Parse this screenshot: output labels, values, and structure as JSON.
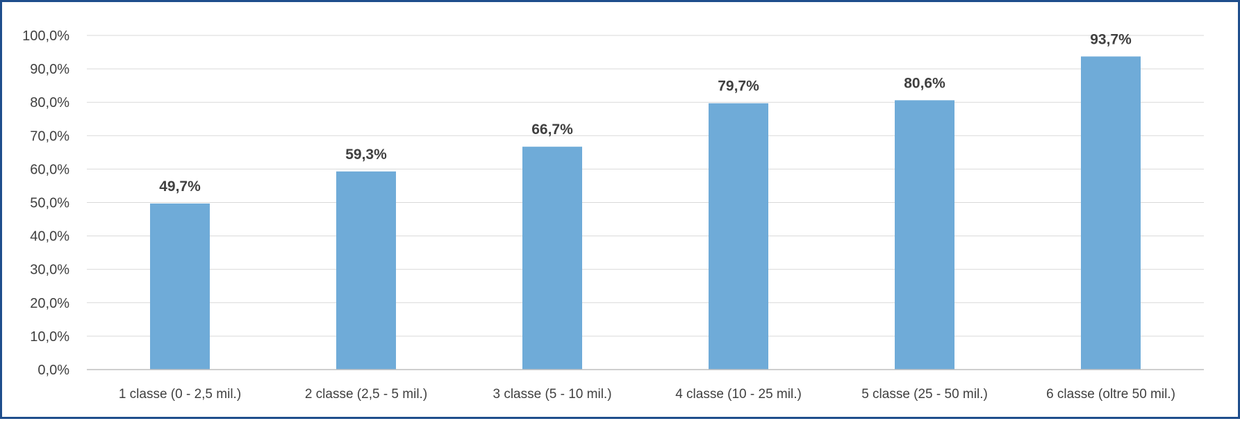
{
  "chart_data": {
    "type": "bar",
    "title": "",
    "xlabel": "",
    "ylabel": "",
    "categories": [
      "1 classe (0 - 2,5 mil.)",
      "2 classe (2,5 - 5 mil.)",
      "3 classe (5 - 10 mil.)",
      "4 classe (10 - 25 mil.)",
      "5 classe (25 - 50 mil.)",
      "6 classe (oltre 50 mil.)"
    ],
    "values": [
      49.7,
      59.3,
      66.7,
      79.7,
      80.6,
      93.7
    ],
    "value_labels": [
      "49,7%",
      "59,3%",
      "66,7%",
      "79,7%",
      "80,6%",
      "93,7%"
    ],
    "ylim": [
      0,
      100
    ],
    "yticks": [
      0,
      10,
      20,
      30,
      40,
      50,
      60,
      70,
      80,
      90,
      100
    ],
    "ytick_labels": [
      "0,0%",
      "10,0%",
      "20,0%",
      "30,0%",
      "40,0%",
      "50,0%",
      "60,0%",
      "70,0%",
      "80,0%",
      "90,0%",
      "100,0%"
    ],
    "grid": true,
    "legend": "none",
    "bar_color": "#6fabd8",
    "frame_color": "#1f4e8c"
  }
}
